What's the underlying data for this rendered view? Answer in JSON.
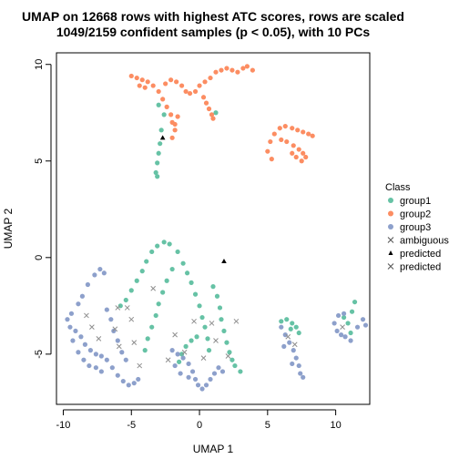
{
  "chart_data": {
    "type": "scatter",
    "title": "UMAP on 12668 rows with highest ATC scores, rows are scaled",
    "subtitle": "1049/2159 confident samples (p < 0.05), with 10 PCs",
    "xlabel": "UMAP 1",
    "ylabel": "UMAP 2",
    "xlim": [
      -10.5,
      12.5
    ],
    "ylim": [
      -7.6,
      10.6
    ],
    "x_ticks": [
      -10,
      -5,
      0,
      5,
      10
    ],
    "y_ticks": [
      -5,
      0,
      5,
      10
    ],
    "grid": false,
    "legend": {
      "placement": "right",
      "title": "Class",
      "entries": [
        {
          "label": "group1",
          "symbol": "circle",
          "color": "#66C2A5"
        },
        {
          "label": "group2",
          "symbol": "circle",
          "color": "#FC8D62"
        },
        {
          "label": "group3",
          "symbol": "circle",
          "color": "#8DA0CB"
        },
        {
          "label": "ambiguous",
          "symbol": "cross",
          "color": "#555555"
        },
        {
          "label": "predicted",
          "symbol": "triangle",
          "color": "#000000"
        },
        {
          "label": "predicted",
          "symbol": "cross",
          "color": "#555555"
        }
      ]
    },
    "series": [
      {
        "name": "group1",
        "color": "#66C2A5",
        "points": [
          [
            -2.2,
            0.7
          ],
          [
            -2.6,
            0.8
          ],
          [
            -3.1,
            0.6
          ],
          [
            -3.5,
            0.3
          ],
          [
            -3.9,
            -0.2
          ],
          [
            -4.2,
            -0.7
          ],
          [
            -4.6,
            -1.2
          ],
          [
            -5.0,
            -1.7
          ],
          [
            -5.4,
            -2.2
          ],
          [
            -5.8,
            -2.5
          ],
          [
            -1.6,
            0.3
          ],
          [
            -1.2,
            -0.3
          ],
          [
            -0.9,
            -0.8
          ],
          [
            -0.6,
            -1.3
          ],
          [
            -0.3,
            -1.9
          ],
          [
            0.0,
            -2.5
          ],
          [
            0.2,
            -3.1
          ],
          [
            0.4,
            -3.6
          ],
          [
            0.6,
            -4.2
          ],
          [
            0.7,
            -4.8
          ],
          [
            1.0,
            -1.5
          ],
          [
            1.3,
            -2.0
          ],
          [
            1.5,
            -2.6
          ],
          [
            1.6,
            -3.2
          ],
          [
            1.8,
            -3.8
          ],
          [
            2.0,
            -4.4
          ],
          [
            2.2,
            -4.9
          ],
          [
            2.4,
            -5.3
          ],
          [
            2.6,
            -5.6
          ],
          [
            3.0,
            -5.9
          ],
          [
            -2.0,
            -0.6
          ],
          [
            -2.4,
            -1.2
          ],
          [
            -2.7,
            -1.8
          ],
          [
            -3.0,
            -2.4
          ],
          [
            -3.2,
            -3.0
          ],
          [
            -3.5,
            -3.6
          ],
          [
            -3.8,
            -4.2
          ],
          [
            -4.0,
            -4.8
          ],
          [
            -0.2,
            -4.1
          ],
          [
            -0.6,
            -4.3
          ],
          [
            -1.0,
            -4.6
          ],
          [
            -1.3,
            -5.0
          ],
          [
            -1.5,
            -5.4
          ],
          [
            6.0,
            -3.3
          ],
          [
            6.4,
            -3.2
          ],
          [
            6.8,
            -3.4
          ],
          [
            7.1,
            -3.6
          ],
          [
            7.3,
            -3.9
          ],
          [
            6.7,
            -3.7
          ],
          [
            10.6,
            -3.1
          ],
          [
            10.9,
            -3.4
          ],
          [
            11.2,
            -2.8
          ],
          [
            11.4,
            -2.3
          ],
          [
            11.1,
            -3.9
          ],
          [
            -3.0,
            7.9
          ],
          [
            -2.6,
            7.4
          ],
          [
            -2.8,
            6.6
          ],
          [
            -2.9,
            5.9
          ],
          [
            -3.0,
            5.4
          ],
          [
            -3.1,
            4.9
          ],
          [
            -3.2,
            4.4
          ],
          [
            -3.1,
            4.2
          ],
          [
            1.2,
            7.5
          ]
        ]
      },
      {
        "name": "group2",
        "color": "#FC8D62",
        "points": [
          [
            -5.0,
            9.4
          ],
          [
            -4.6,
            9.3
          ],
          [
            -4.2,
            9.2
          ],
          [
            -3.8,
            9.1
          ],
          [
            -3.4,
            8.9
          ],
          [
            -3.0,
            8.6
          ],
          [
            -2.7,
            8.2
          ],
          [
            -2.4,
            7.8
          ],
          [
            -2.1,
            7.4
          ],
          [
            -2.0,
            7.0
          ],
          [
            -4.4,
            8.9
          ],
          [
            -4.0,
            8.8
          ],
          [
            -2.5,
            9.0
          ],
          [
            -2.1,
            9.2
          ],
          [
            -1.7,
            9.1
          ],
          [
            -1.3,
            8.9
          ],
          [
            -1.0,
            8.6
          ],
          [
            -0.7,
            8.5
          ],
          [
            -0.3,
            8.6
          ],
          [
            0.0,
            8.9
          ],
          [
            0.4,
            9.1
          ],
          [
            0.8,
            9.3
          ],
          [
            1.2,
            9.6
          ],
          [
            1.6,
            9.7
          ],
          [
            2.0,
            9.8
          ],
          [
            2.4,
            9.7
          ],
          [
            2.8,
            9.6
          ],
          [
            3.2,
            9.8
          ],
          [
            3.5,
            9.9
          ],
          [
            3.9,
            9.7
          ],
          [
            0.3,
            8.3
          ],
          [
            0.5,
            8.0
          ],
          [
            0.7,
            7.7
          ],
          [
            0.9,
            7.4
          ],
          [
            1.0,
            7.2
          ],
          [
            -1.6,
            7.3
          ],
          [
            -1.8,
            6.9
          ],
          [
            -1.8,
            6.6
          ],
          [
            -2.0,
            6.2
          ],
          [
            5.0,
            5.5
          ],
          [
            5.2,
            6.0
          ],
          [
            5.5,
            6.4
          ],
          [
            5.9,
            6.7
          ],
          [
            6.3,
            6.8
          ],
          [
            6.8,
            6.7
          ],
          [
            7.2,
            6.6
          ],
          [
            7.6,
            6.5
          ],
          [
            8.0,
            6.4
          ],
          [
            8.3,
            6.3
          ],
          [
            6.0,
            6.1
          ],
          [
            6.4,
            6.0
          ],
          [
            6.9,
            5.8
          ],
          [
            7.3,
            5.6
          ],
          [
            7.6,
            5.4
          ],
          [
            7.8,
            5.2
          ],
          [
            7.5,
            5.0
          ],
          [
            7.1,
            5.2
          ],
          [
            6.8,
            5.4
          ],
          [
            5.3,
            5.1
          ]
        ]
      },
      {
        "name": "group3",
        "color": "#8DA0CB",
        "points": [
          [
            -9.5,
            -3.6
          ],
          [
            -9.1,
            -3.8
          ],
          [
            -8.7,
            -4.1
          ],
          [
            -8.4,
            -4.5
          ],
          [
            -8.0,
            -4.8
          ],
          [
            -7.6,
            -5.0
          ],
          [
            -7.2,
            -5.1
          ],
          [
            -6.8,
            -5.3
          ],
          [
            -6.4,
            -5.7
          ],
          [
            -6.0,
            -6.1
          ],
          [
            -5.6,
            -6.4
          ],
          [
            -5.2,
            -6.6
          ],
          [
            -4.8,
            -6.5
          ],
          [
            -4.5,
            -6.3
          ],
          [
            -8.9,
            -2.4
          ],
          [
            -8.6,
            -2.0
          ],
          [
            -8.2,
            -1.4
          ],
          [
            -7.7,
            -0.9
          ],
          [
            -7.3,
            -0.6
          ],
          [
            -7.0,
            -0.8
          ],
          [
            -6.8,
            -2.7
          ],
          [
            -6.5,
            -3.2
          ],
          [
            -6.3,
            -3.8
          ],
          [
            -6.0,
            -4.3
          ],
          [
            -5.7,
            -4.9
          ],
          [
            -5.4,
            -5.3
          ],
          [
            -9.3,
            -4.3
          ],
          [
            -8.9,
            -4.9
          ],
          [
            -8.5,
            -5.3
          ],
          [
            -8.1,
            -5.6
          ],
          [
            -7.6,
            -5.7
          ],
          [
            -7.2,
            -5.9
          ],
          [
            -9.7,
            -3.2
          ],
          [
            -9.4,
            -2.9
          ],
          [
            -2.0,
            -4.8
          ],
          [
            -1.6,
            -5.0
          ],
          [
            -1.2,
            -5.2
          ],
          [
            -0.8,
            -5.5
          ],
          [
            -0.5,
            -5.9
          ],
          [
            -0.3,
            -6.3
          ],
          [
            -0.1,
            -6.6
          ],
          [
            0.2,
            -6.8
          ],
          [
            0.5,
            -6.6
          ],
          [
            0.8,
            -6.3
          ],
          [
            1.1,
            -6.0
          ],
          [
            1.4,
            -5.7
          ],
          [
            1.7,
            -5.9
          ],
          [
            -1.8,
            -5.6
          ],
          [
            -1.4,
            -6.0
          ],
          [
            -0.8,
            -6.2
          ],
          [
            6.0,
            -3.6
          ],
          [
            6.3,
            -4.0
          ],
          [
            6.6,
            -4.4
          ],
          [
            6.9,
            -4.8
          ],
          [
            7.1,
            -5.2
          ],
          [
            7.3,
            -5.6
          ],
          [
            7.4,
            -6.0
          ],
          [
            7.6,
            -6.2
          ],
          [
            6.2,
            -4.6
          ],
          [
            6.8,
            -5.5
          ],
          [
            9.9,
            -3.4
          ],
          [
            10.1,
            -3.8
          ],
          [
            10.4,
            -4.0
          ],
          [
            10.7,
            -4.1
          ],
          [
            11.1,
            -4.3
          ],
          [
            11.6,
            -3.6
          ],
          [
            12.0,
            -3.2
          ],
          [
            12.2,
            -3.5
          ],
          [
            10.2,
            -3.0
          ],
          [
            10.6,
            -2.9
          ]
        ]
      },
      {
        "name": "ambiguous",
        "color": "#8E8E8E",
        "marker": "cross",
        "points": [
          [
            -6.0,
            -2.6
          ],
          [
            -6.2,
            -3.7
          ],
          [
            -5.9,
            -4.6
          ],
          [
            -5.0,
            -3.2
          ],
          [
            -4.8,
            -4.4
          ],
          [
            -4.4,
            -5.6
          ],
          [
            -2.3,
            -5.3
          ],
          [
            -1.1,
            -4.9
          ],
          [
            0.9,
            -3.4
          ],
          [
            1.2,
            -4.3
          ],
          [
            2.1,
            -5.1
          ],
          [
            2.7,
            -3.3
          ],
          [
            -7.9,
            -3.6
          ],
          [
            -8.3,
            -3.0
          ],
          [
            -7.4,
            -4.2
          ],
          [
            6.5,
            -4.1
          ],
          [
            7.0,
            -4.5
          ],
          [
            10.5,
            -3.6
          ],
          [
            -3.4,
            -1.6
          ],
          [
            -0.4,
            -3.3
          ],
          [
            -1.8,
            -4.0
          ],
          [
            0.3,
            -5.2
          ],
          [
            -5.3,
            -2.6
          ]
        ]
      },
      {
        "name": "predicted",
        "color": "#000000",
        "marker": "triangle",
        "points": [
          [
            -2.7,
            6.2
          ],
          [
            1.8,
            -0.2
          ]
        ]
      }
    ]
  }
}
